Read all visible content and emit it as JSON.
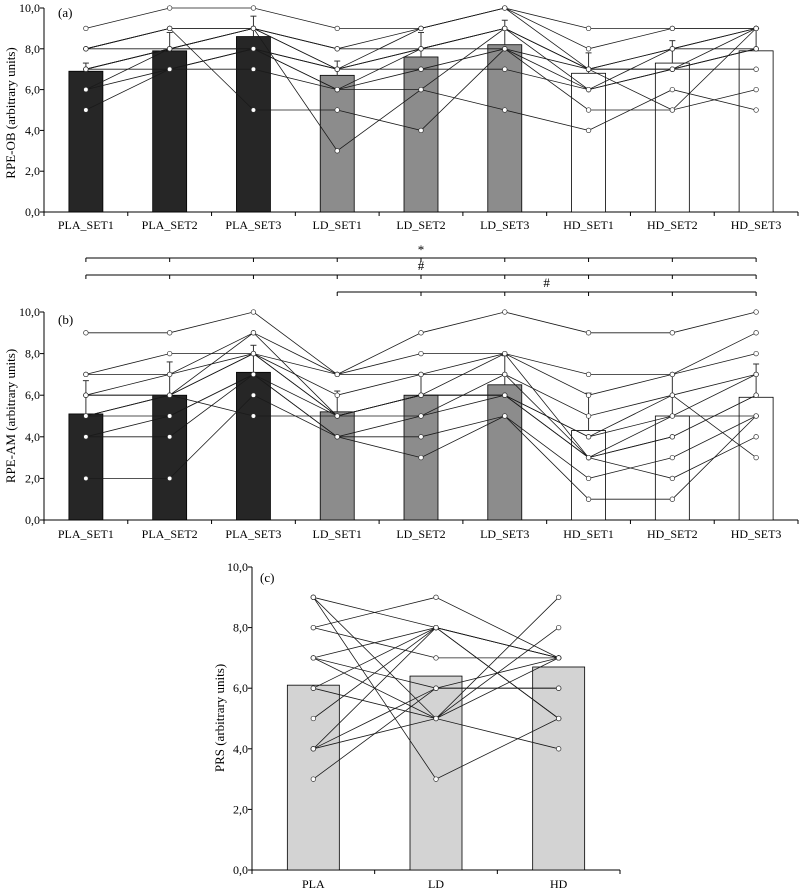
{
  "chart_data": [
    {
      "panel_label": "(a)",
      "type": "bar",
      "ylabel": "RPE-OB (arbitrary units)",
      "ylim": [
        0,
        10
      ],
      "ytick_labels": [
        "0,0",
        "2,0",
        "4,0",
        "6,0",
        "8,0",
        "10,0"
      ],
      "categories": [
        "PLA_SET1",
        "PLA_SET2",
        "PLA_SET3",
        "LD_SET1",
        "LD_SET2",
        "LD_SET3",
        "HD_SET1",
        "HD_SET2",
        "HD_SET3"
      ],
      "values": [
        6.9,
        7.9,
        8.6,
        6.7,
        7.6,
        8.2,
        6.8,
        7.3,
        7.9
      ],
      "errors": [
        0.4,
        0.9,
        1.0,
        0.7,
        1.2,
        1.2,
        1.0,
        1.1,
        1.1
      ],
      "bar_colors": [
        "#262626",
        "#262626",
        "#262626",
        "#8c8c8c",
        "#8c8c8c",
        "#8c8c8c",
        "#ffffff",
        "#ffffff",
        "#ffffff"
      ],
      "individual_lines": [
        [
          9,
          10,
          10,
          9,
          9,
          10,
          9,
          9,
          9
        ],
        [
          8,
          9,
          9,
          8,
          9,
          10,
          8,
          9,
          9
        ],
        [
          8,
          8,
          9,
          8,
          8,
          9,
          7,
          8,
          9
        ],
        [
          7,
          8,
          9,
          7,
          8,
          9,
          7,
          8,
          8
        ],
        [
          7,
          8,
          8,
          7,
          8,
          9,
          7,
          7,
          8
        ],
        [
          6,
          7,
          8,
          7,
          7,
          8,
          7,
          7,
          8
        ],
        [
          6,
          8,
          8,
          6,
          8,
          8,
          6,
          8,
          9
        ],
        [
          5,
          7,
          7,
          6,
          7,
          7,
          6,
          7,
          7
        ],
        [
          7,
          8,
          9,
          3,
          6,
          9,
          6,
          7,
          9
        ],
        [
          8,
          9,
          5,
          5,
          4,
          8,
          5,
          5,
          6
        ],
        [
          7,
          7,
          8,
          6,
          6,
          5,
          4,
          6,
          5
        ],
        [
          8,
          9,
          9,
          7,
          9,
          10,
          7,
          5,
          9
        ]
      ],
      "significance": []
    },
    {
      "panel_label": "(b)",
      "type": "bar",
      "ylabel": "RPE-AM (arbitrary units)",
      "ylim": [
        0,
        10
      ],
      "ytick_labels": [
        "0,0",
        "2,0",
        "4,0",
        "6,0",
        "8,0",
        "10,0"
      ],
      "categories": [
        "PLA_SET1",
        "PLA_SET2",
        "PLA_SET3",
        "LD_SET1",
        "LD_SET2",
        "LD_SET3",
        "HD_SET1",
        "HD_SET2",
        "HD_SET3"
      ],
      "values": [
        5.1,
        6.0,
        7.1,
        5.2,
        6.0,
        6.5,
        4.3,
        5.0,
        5.9
      ],
      "errors": [
        1.6,
        1.6,
        1.3,
        1.0,
        1.0,
        1.4,
        1.8,
        2.0,
        1.6
      ],
      "bar_colors": [
        "#262626",
        "#262626",
        "#262626",
        "#8c8c8c",
        "#8c8c8c",
        "#8c8c8c",
        "#ffffff",
        "#ffffff",
        "#ffffff"
      ],
      "individual_lines": [
        [
          9,
          9,
          10,
          7,
          9,
          10,
          9,
          9,
          10
        ],
        [
          7,
          7,
          9,
          7,
          8,
          8,
          7,
          7,
          9
        ],
        [
          7,
          8,
          8,
          7,
          7,
          8,
          6,
          7,
          8
        ],
        [
          6,
          7,
          8,
          6,
          7,
          7,
          5,
          6,
          7
        ],
        [
          6,
          6,
          9,
          5,
          6,
          6,
          4,
          5,
          7
        ],
        [
          5,
          6,
          8,
          5,
          6,
          6,
          3,
          4,
          6
        ],
        [
          5,
          5,
          7,
          5,
          6,
          8,
          3,
          4,
          6
        ],
        [
          4,
          4,
          7,
          4,
          5,
          6,
          3,
          5,
          5
        ],
        [
          2,
          2,
          6,
          4,
          4,
          5,
          2,
          3,
          5
        ],
        [
          4,
          5,
          7,
          4,
          3,
          5,
          1,
          1,
          5
        ],
        [
          6,
          6,
          5,
          5,
          5,
          7,
          3,
          2,
          4
        ],
        [
          5,
          6,
          8,
          5,
          6,
          6,
          4,
          6,
          3
        ]
      ],
      "significance": [
        {
          "label": "*",
          "from": 0,
          "to": 8
        },
        {
          "label": "#",
          "from": 0,
          "to": 8
        },
        {
          "label": "#",
          "from": 3,
          "to": 8
        }
      ]
    },
    {
      "panel_label": "(c)",
      "type": "bar",
      "ylabel": "PRS (arbitrary units)",
      "ylim": [
        0,
        10
      ],
      "ytick_labels": [
        "0,0",
        "2,0",
        "4,0",
        "6,0",
        "8,0",
        "10,0"
      ],
      "categories": [
        "PLA",
        "LD",
        "HD"
      ],
      "values": [
        6.1,
        6.4,
        6.7
      ],
      "errors": [
        0,
        0,
        0
      ],
      "bar_colors": [
        "#d3d3d3",
        "#d3d3d3",
        "#d3d3d3"
      ],
      "individual_lines": [
        [
          9,
          8,
          7
        ],
        [
          9,
          5,
          8
        ],
        [
          8,
          7,
          7
        ],
        [
          8,
          9,
          7
        ],
        [
          7,
          8,
          5
        ],
        [
          7,
          6,
          6
        ],
        [
          6,
          5,
          9
        ],
        [
          6,
          8,
          7
        ],
        [
          5,
          8,
          7
        ],
        [
          4,
          8,
          5
        ],
        [
          4,
          5,
          4
        ],
        [
          4,
          6,
          7
        ],
        [
          3,
          6,
          6
        ],
        [
          9,
          3,
          5
        ],
        [
          7,
          5,
          7
        ]
      ],
      "significance": []
    }
  ]
}
